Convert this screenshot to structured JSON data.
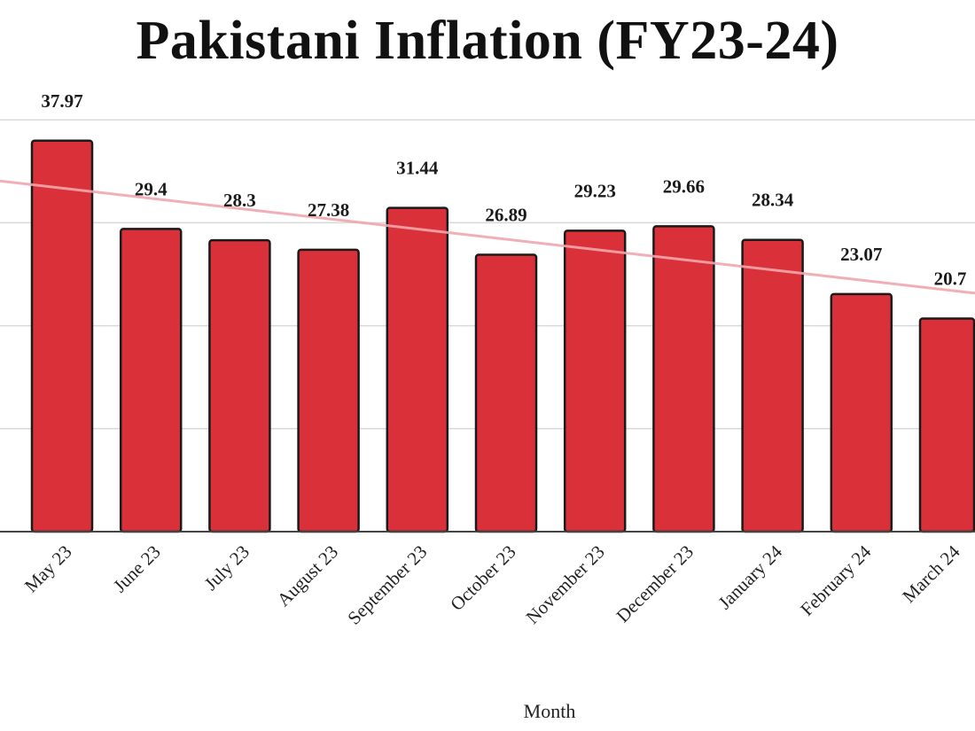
{
  "chart_data": {
    "type": "bar",
    "title": "Pakistani Inflation (FY23-24)",
    "xlabel": "Month",
    "ylabel": "",
    "categories": [
      "May 23",
      "June 23",
      "July 23",
      "August 23",
      "September 23",
      "October 23",
      "November 23",
      "December 23",
      "January 24",
      "February 24",
      "March 24"
    ],
    "values": [
      37.97,
      29.4,
      28.3,
      27.38,
      31.44,
      26.89,
      29.23,
      29.66,
      28.34,
      23.07,
      20.7
    ],
    "value_labels": [
      "37.97",
      "29.4",
      "28.3",
      "27.38",
      "31.44",
      "26.89",
      "29.23",
      "29.66",
      "28.34",
      "23.07",
      "20.7"
    ],
    "ylim": [
      0,
      40
    ],
    "gridlines": [
      10,
      20,
      30,
      40
    ],
    "grid": true,
    "trendline": true,
    "colors": {
      "bar": "#d9303a",
      "bar_outline": "#1a1a1a",
      "trendline": "#f0a7ad",
      "grid": "#d9d9d9"
    }
  }
}
